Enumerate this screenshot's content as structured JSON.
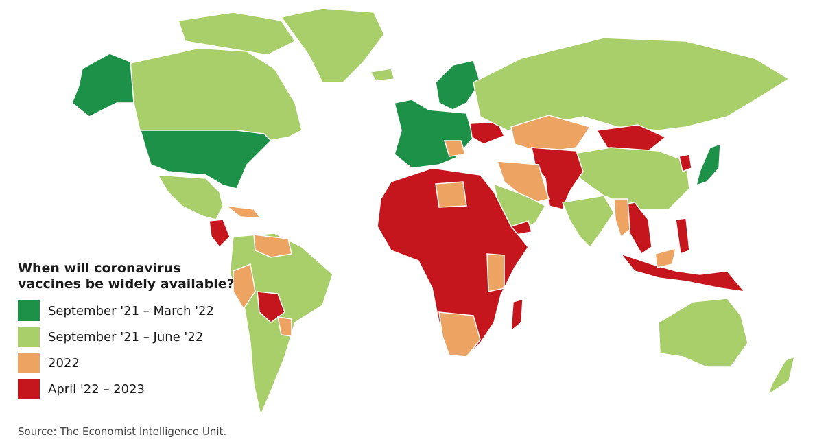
{
  "map": {
    "title": "When will coronavirus vaccines be widely available?",
    "source": "Source: The Economist Intelligence Unit.",
    "categories": [
      {
        "key": "c1",
        "label": "September '21 – March '22",
        "color": "#1e9148"
      },
      {
        "key": "c2",
        "label": "September '21 – June '22",
        "color": "#a9cf6b"
      },
      {
        "key": "c3",
        "label": "2022",
        "color": "#eda462"
      },
      {
        "key": "c4",
        "label": "April '22 – 2023",
        "color": "#c4161c"
      }
    ]
  }
}
